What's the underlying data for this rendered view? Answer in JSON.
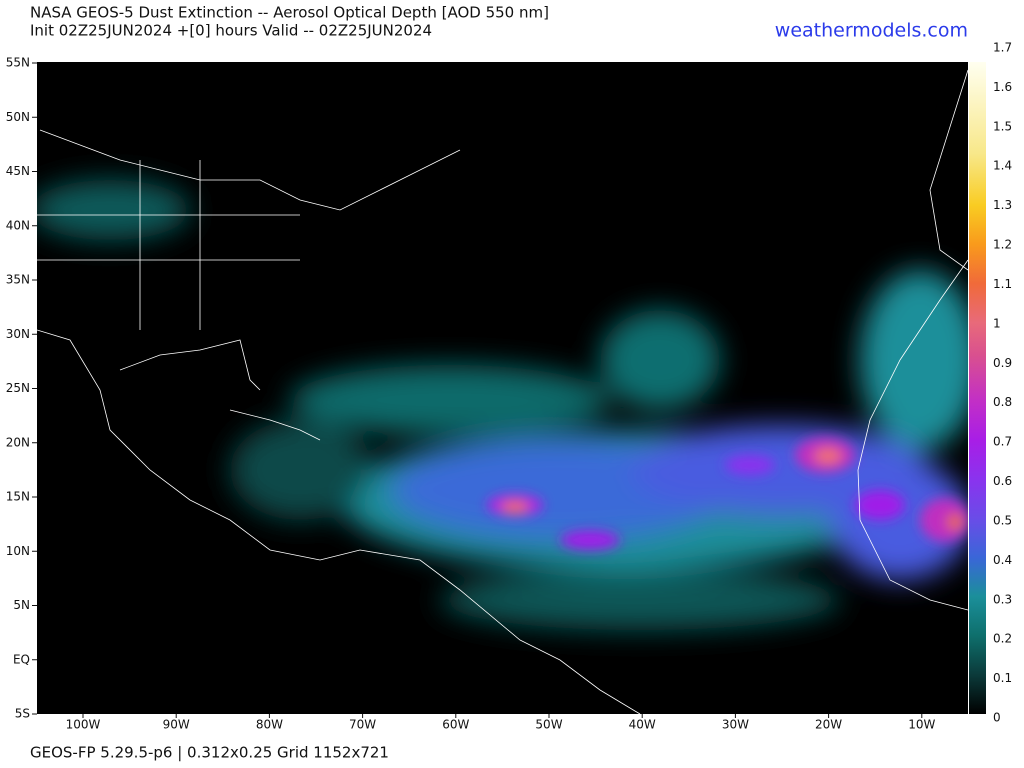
{
  "header": {
    "title": "NASA GEOS-5 Dust Extinction -- Aerosol Optical Depth [AOD 550 nm]",
    "subtitle": "Init 02Z25JUN2024 +[0] hours Valid -- 02Z25JUN2024",
    "brand": "weathermodels.com"
  },
  "map": {
    "lat_labels": [
      "55N",
      "50N",
      "45N",
      "40N",
      "35N",
      "30N",
      "25N",
      "20N",
      "15N",
      "10N",
      "5N",
      "EQ",
      "5S"
    ],
    "lon_labels": [
      "100W",
      "90W",
      "80W",
      "70W",
      "60W",
      "50W",
      "40W",
      "30W",
      "20W",
      "10W"
    ]
  },
  "colorbar": {
    "range": [
      0,
      1.7
    ],
    "ticks": [
      0,
      0.1,
      0.2,
      0.3,
      0.4,
      0.5,
      0.6,
      0.7,
      0.8,
      0.9,
      1,
      1.1,
      1.2,
      1.3,
      1.4,
      1.5,
      1.6,
      1.7
    ]
  },
  "footer": "GEOS-FP 5.29.5-p6 | 0.312x0.25 Grid 1152x721"
}
